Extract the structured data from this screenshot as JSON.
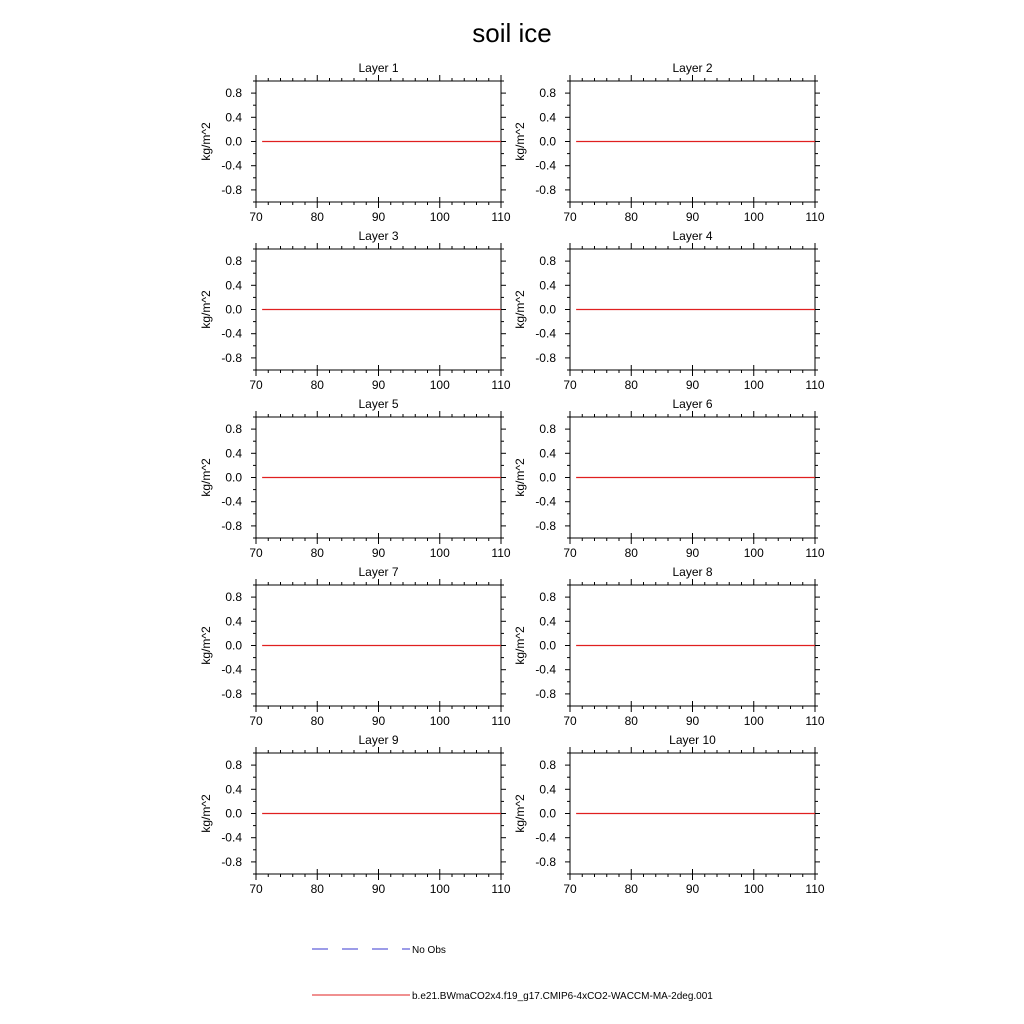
{
  "figure": {
    "title": "soil ice"
  },
  "chart_data": {
    "type": "line",
    "title": "soil ice",
    "xlim": [
      70,
      110
    ],
    "ylim": [
      -1.0,
      1.0
    ],
    "xticks": [
      70,
      80,
      90,
      100,
      110
    ],
    "xtick_labels": [
      "70",
      "80",
      "90",
      "100",
      "110"
    ],
    "yticks": [
      -0.8,
      -0.4,
      0.0,
      0.4,
      0.8
    ],
    "ytick_labels": [
      "-0.8",
      "-0.4",
      "0.0",
      "0.4",
      "0.8"
    ],
    "ylabel": "kg/m^2",
    "grid": false,
    "colors": {
      "model": "#e02020",
      "obs": "#3a3ad0",
      "axis": "#000000"
    },
    "panels": [
      {
        "title": "Layer 1",
        "series": [
          {
            "name": "b.e21.BWmaCO2x4.f19_g17.CMIP6-4xCO2-WACCM-MA-2deg.001",
            "x": [
              71,
              110
            ],
            "y": [
              0.0,
              0.0
            ]
          }
        ]
      },
      {
        "title": "Layer 2",
        "series": [
          {
            "name": "b.e21.BWmaCO2x4.f19_g17.CMIP6-4xCO2-WACCM-MA-2deg.001",
            "x": [
              71,
              110
            ],
            "y": [
              0.0,
              0.0
            ]
          }
        ]
      },
      {
        "title": "Layer 3",
        "series": [
          {
            "name": "b.e21.BWmaCO2x4.f19_g17.CMIP6-4xCO2-WACCM-MA-2deg.001",
            "x": [
              71,
              110
            ],
            "y": [
              0.0,
              0.0
            ]
          }
        ]
      },
      {
        "title": "Layer 4",
        "series": [
          {
            "name": "b.e21.BWmaCO2x4.f19_g17.CMIP6-4xCO2-WACCM-MA-2deg.001",
            "x": [
              71,
              110
            ],
            "y": [
              0.0,
              0.0
            ]
          }
        ]
      },
      {
        "title": "Layer 5",
        "series": [
          {
            "name": "b.e21.BWmaCO2x4.f19_g17.CMIP6-4xCO2-WACCM-MA-2deg.001",
            "x": [
              71,
              110
            ],
            "y": [
              0.0,
              0.0
            ]
          }
        ]
      },
      {
        "title": "Layer 6",
        "series": [
          {
            "name": "b.e21.BWmaCO2x4.f19_g17.CMIP6-4xCO2-WACCM-MA-2deg.001",
            "x": [
              71,
              110
            ],
            "y": [
              0.0,
              0.0
            ]
          }
        ]
      },
      {
        "title": "Layer 7",
        "series": [
          {
            "name": "b.e21.BWmaCO2x4.f19_g17.CMIP6-4xCO2-WACCM-MA-2deg.001",
            "x": [
              71,
              110
            ],
            "y": [
              0.0,
              0.0
            ]
          }
        ]
      },
      {
        "title": "Layer 8",
        "series": [
          {
            "name": "b.e21.BWmaCO2x4.f19_g17.CMIP6-4xCO2-WACCM-MA-2deg.001",
            "x": [
              71,
              110
            ],
            "y": [
              0.0,
              0.0
            ]
          }
        ]
      },
      {
        "title": "Layer 9",
        "series": [
          {
            "name": "b.e21.BWmaCO2x4.f19_g17.CMIP6-4xCO2-WACCM-MA-2deg.001",
            "x": [
              71,
              110
            ],
            "y": [
              0.0,
              0.0
            ]
          }
        ]
      },
      {
        "title": "Layer 10",
        "series": [
          {
            "name": "b.e21.BWmaCO2x4.f19_g17.CMIP6-4xCO2-WACCM-MA-2deg.001",
            "x": [
              71,
              110
            ],
            "y": [
              0.0,
              0.0
            ]
          }
        ]
      }
    ],
    "legend": {
      "placement": "bottom",
      "entries": [
        {
          "label": "No Obs",
          "style": "dashed",
          "color": "#3a3ad0"
        },
        {
          "label": "b.e21.BWmaCO2x4.f19_g17.CMIP6-4xCO2-WACCM-MA-2deg.001",
          "style": "solid",
          "color": "#e02020"
        }
      ]
    }
  }
}
